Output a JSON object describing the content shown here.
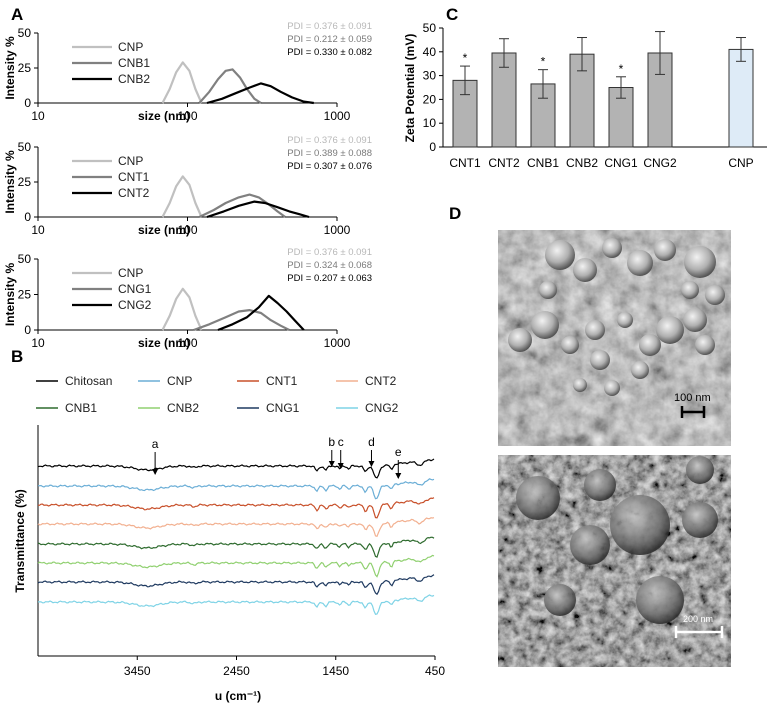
{
  "panel_labels": {
    "a": "A",
    "b": "B",
    "c": "C",
    "d": "D"
  },
  "chart_data": [
    {
      "type": "line",
      "panel": "A1",
      "xscale": "log",
      "xlim": [
        10,
        1000
      ],
      "ylim": [
        0,
        50
      ],
      "xlabel": "size (nm)",
      "ylabel": "Intensity %",
      "xticks": [
        "10",
        "100",
        "1000"
      ],
      "yticks": [
        "0",
        "25",
        "50"
      ],
      "series": [
        {
          "name": "CNP",
          "color": "#c0c0c0",
          "pdi": "PDI = 0.376 ± 0.091",
          "points": [
            [
              68,
              0
            ],
            [
              76,
              10
            ],
            [
              84,
              22
            ],
            [
              93,
              29
            ],
            [
              103,
              23
            ],
            [
              113,
              10
            ],
            [
              124,
              0
            ]
          ]
        },
        {
          "name": "CNB1",
          "color": "#808080",
          "pdi": "PDI = 0.212 ± 0.059",
          "points": [
            [
              120,
              0
            ],
            [
              140,
              8
            ],
            [
              160,
              17
            ],
            [
              180,
              23
            ],
            [
              200,
              24
            ],
            [
              225,
              18
            ],
            [
              250,
              10
            ],
            [
              280,
              3
            ],
            [
              310,
              0
            ]
          ]
        },
        {
          "name": "CNB2",
          "color": "#000000",
          "pdi": "PDI = 0.330 ± 0.082",
          "points": [
            [
              135,
              0
            ],
            [
              170,
              3
            ],
            [
              210,
              7
            ],
            [
              260,
              11
            ],
            [
              310,
              14
            ],
            [
              360,
              12
            ],
            [
              420,
              8
            ],
            [
              500,
              4
            ],
            [
              600,
              1
            ],
            [
              700,
              0
            ]
          ]
        }
      ]
    },
    {
      "type": "line",
      "panel": "A2",
      "xscale": "log",
      "xlim": [
        10,
        1000
      ],
      "ylim": [
        0,
        50
      ],
      "xlabel": "size (nm)",
      "ylabel": "Intensity %",
      "xticks": [
        "10",
        "100",
        "1000"
      ],
      "yticks": [
        "0",
        "25",
        "50"
      ],
      "series": [
        {
          "name": "CNP",
          "color": "#c0c0c0",
          "pdi": "PDI = 0.376 ± 0.091",
          "points": [
            [
              68,
              0
            ],
            [
              76,
              10
            ],
            [
              84,
              22
            ],
            [
              93,
              29
            ],
            [
              103,
              23
            ],
            [
              113,
              10
            ],
            [
              124,
              0
            ]
          ]
        },
        {
          "name": "CNT1",
          "color": "#808080",
          "pdi": "PDI = 0.389 ± 0.088",
          "points": [
            [
              120,
              0
            ],
            [
              150,
              5
            ],
            [
              180,
              10
            ],
            [
              220,
              14
            ],
            [
              260,
              16
            ],
            [
              300,
              14
            ],
            [
              350,
              9
            ],
            [
              400,
              4
            ],
            [
              450,
              0
            ]
          ]
        },
        {
          "name": "CNT2",
          "color": "#000000",
          "pdi": "PDI = 0.307 ± 0.076",
          "points": [
            [
              135,
              0
            ],
            [
              175,
              4
            ],
            [
              220,
              8
            ],
            [
              280,
              11
            ],
            [
              330,
              10
            ],
            [
              400,
              7
            ],
            [
              480,
              4
            ],
            [
              560,
              2
            ],
            [
              650,
              0
            ]
          ]
        }
      ]
    },
    {
      "type": "line",
      "panel": "A3",
      "xscale": "log",
      "xlim": [
        10,
        1000
      ],
      "ylim": [
        0,
        50
      ],
      "xlabel": "size (nm)",
      "ylabel": "Intensity %",
      "xticks": [
        "10",
        "100",
        "1000"
      ],
      "yticks": [
        "0",
        "25",
        "50"
      ],
      "series": [
        {
          "name": "CNP",
          "color": "#c0c0c0",
          "pdi": "PDI = 0.376 ± 0.091",
          "points": [
            [
              68,
              0
            ],
            [
              76,
              10
            ],
            [
              84,
              22
            ],
            [
              93,
              29
            ],
            [
              103,
              23
            ],
            [
              113,
              10
            ],
            [
              124,
              0
            ]
          ]
        },
        {
          "name": "CNG1",
          "color": "#808080",
          "pdi": "PDI = 0.324 ± 0.068",
          "points": [
            [
              110,
              0
            ],
            [
              140,
              4
            ],
            [
              180,
              9
            ],
            [
              220,
              13
            ],
            [
              260,
              14
            ],
            [
              310,
              12
            ],
            [
              360,
              7
            ],
            [
              420,
              3
            ],
            [
              480,
              0
            ]
          ]
        },
        {
          "name": "CNG2",
          "color": "#000000",
          "pdi": "PDI = 0.207 ± 0.063",
          "points": [
            [
              160,
              0
            ],
            [
              200,
              4
            ],
            [
              250,
              9
            ],
            [
              300,
              16
            ],
            [
              350,
              24
            ],
            [
              400,
              19
            ],
            [
              460,
              13
            ],
            [
              520,
              7
            ],
            [
              600,
              0
            ]
          ]
        }
      ]
    },
    {
      "type": "line",
      "panel": "B",
      "xlim": [
        4450,
        450
      ],
      "xticks": [
        "3450",
        "2450",
        "1450",
        "450"
      ],
      "xlabel": "u (cm⁻¹)",
      "ylabel": "Transmittance (%)",
      "peak_labels": [
        "a",
        "b",
        "c",
        "d",
        "e"
      ],
      "series": [
        {
          "name": "Chitosan",
          "color": "#000000"
        },
        {
          "name": "CNP",
          "color": "#6baed6"
        },
        {
          "name": "CNT1",
          "color": "#c8502a"
        },
        {
          "name": "CNT2",
          "color": "#f2b090"
        },
        {
          "name": "CNB1",
          "color": "#2e6b2e"
        },
        {
          "name": "CNB2",
          "color": "#90d070"
        },
        {
          "name": "CNG1",
          "color": "#1f3a60"
        },
        {
          "name": "CNG2",
          "color": "#7fd3e6"
        }
      ]
    },
    {
      "type": "bar",
      "panel": "C",
      "ylabel": "Zeta Potential (mV)",
      "ylim": [
        0,
        50
      ],
      "yticks": [
        "0",
        "10",
        "20",
        "30",
        "40",
        "50"
      ],
      "categories": [
        "CNT1",
        "CNT2",
        "CNB1",
        "CNB2",
        "CNG1",
        "CNG2",
        "CNP"
      ],
      "values": [
        28,
        39.5,
        26.5,
        39,
        25,
        39.5,
        41
      ],
      "errors": [
        6,
        6,
        6,
        7,
        4.5,
        9,
        5
      ],
      "significant": [
        true,
        false,
        true,
        false,
        true,
        false,
        false
      ],
      "bar_color": "#b3b3b3",
      "cnp_color": "#deebf7"
    }
  ],
  "scale_bars": {
    "top": "100 nm",
    "bottom": "200 nm"
  }
}
